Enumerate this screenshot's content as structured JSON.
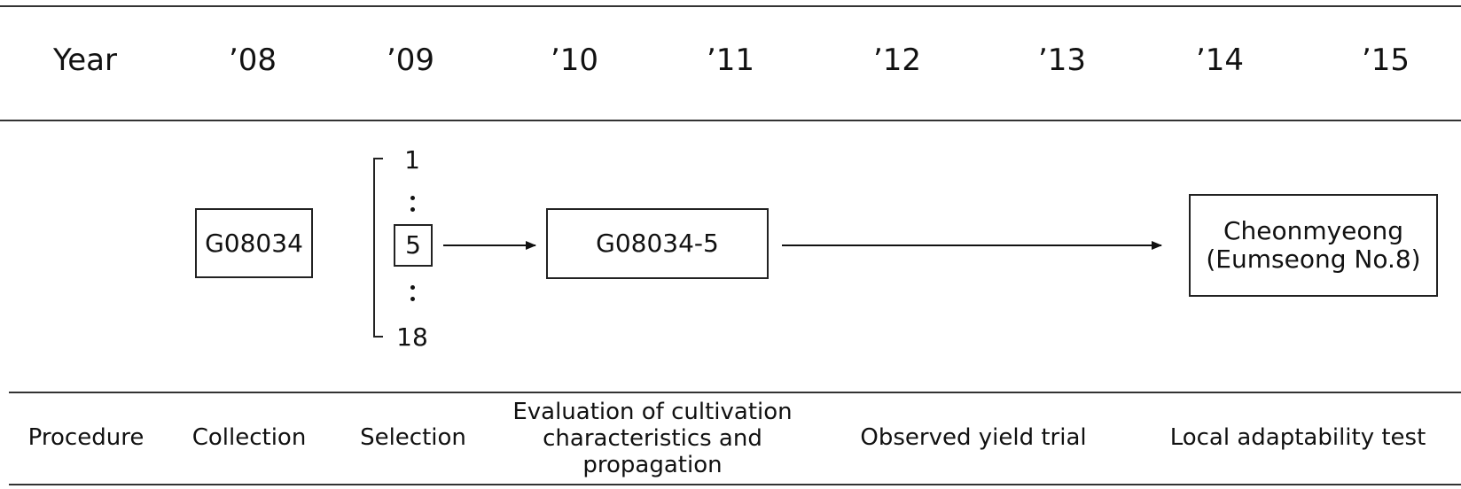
{
  "header": {
    "label": "Year",
    "years": [
      "’08",
      "’09",
      "’10",
      "’11",
      "’12",
      "’13",
      "’14",
      "’15"
    ]
  },
  "diagram": {
    "collection_box": "G08034",
    "selection": {
      "first": "1",
      "selected": "5",
      "last": "18"
    },
    "evaluation_box": "G08034-5",
    "final_box": {
      "line1": "Cheonmyeong",
      "line2": "(Eumseong No.8)"
    }
  },
  "footer": {
    "label": "Procedure",
    "steps": [
      "Collection",
      "Selection",
      "Evaluation of cultivation characteristics and propagation",
      "Observed yield trial",
      "Local adaptability test"
    ]
  }
}
